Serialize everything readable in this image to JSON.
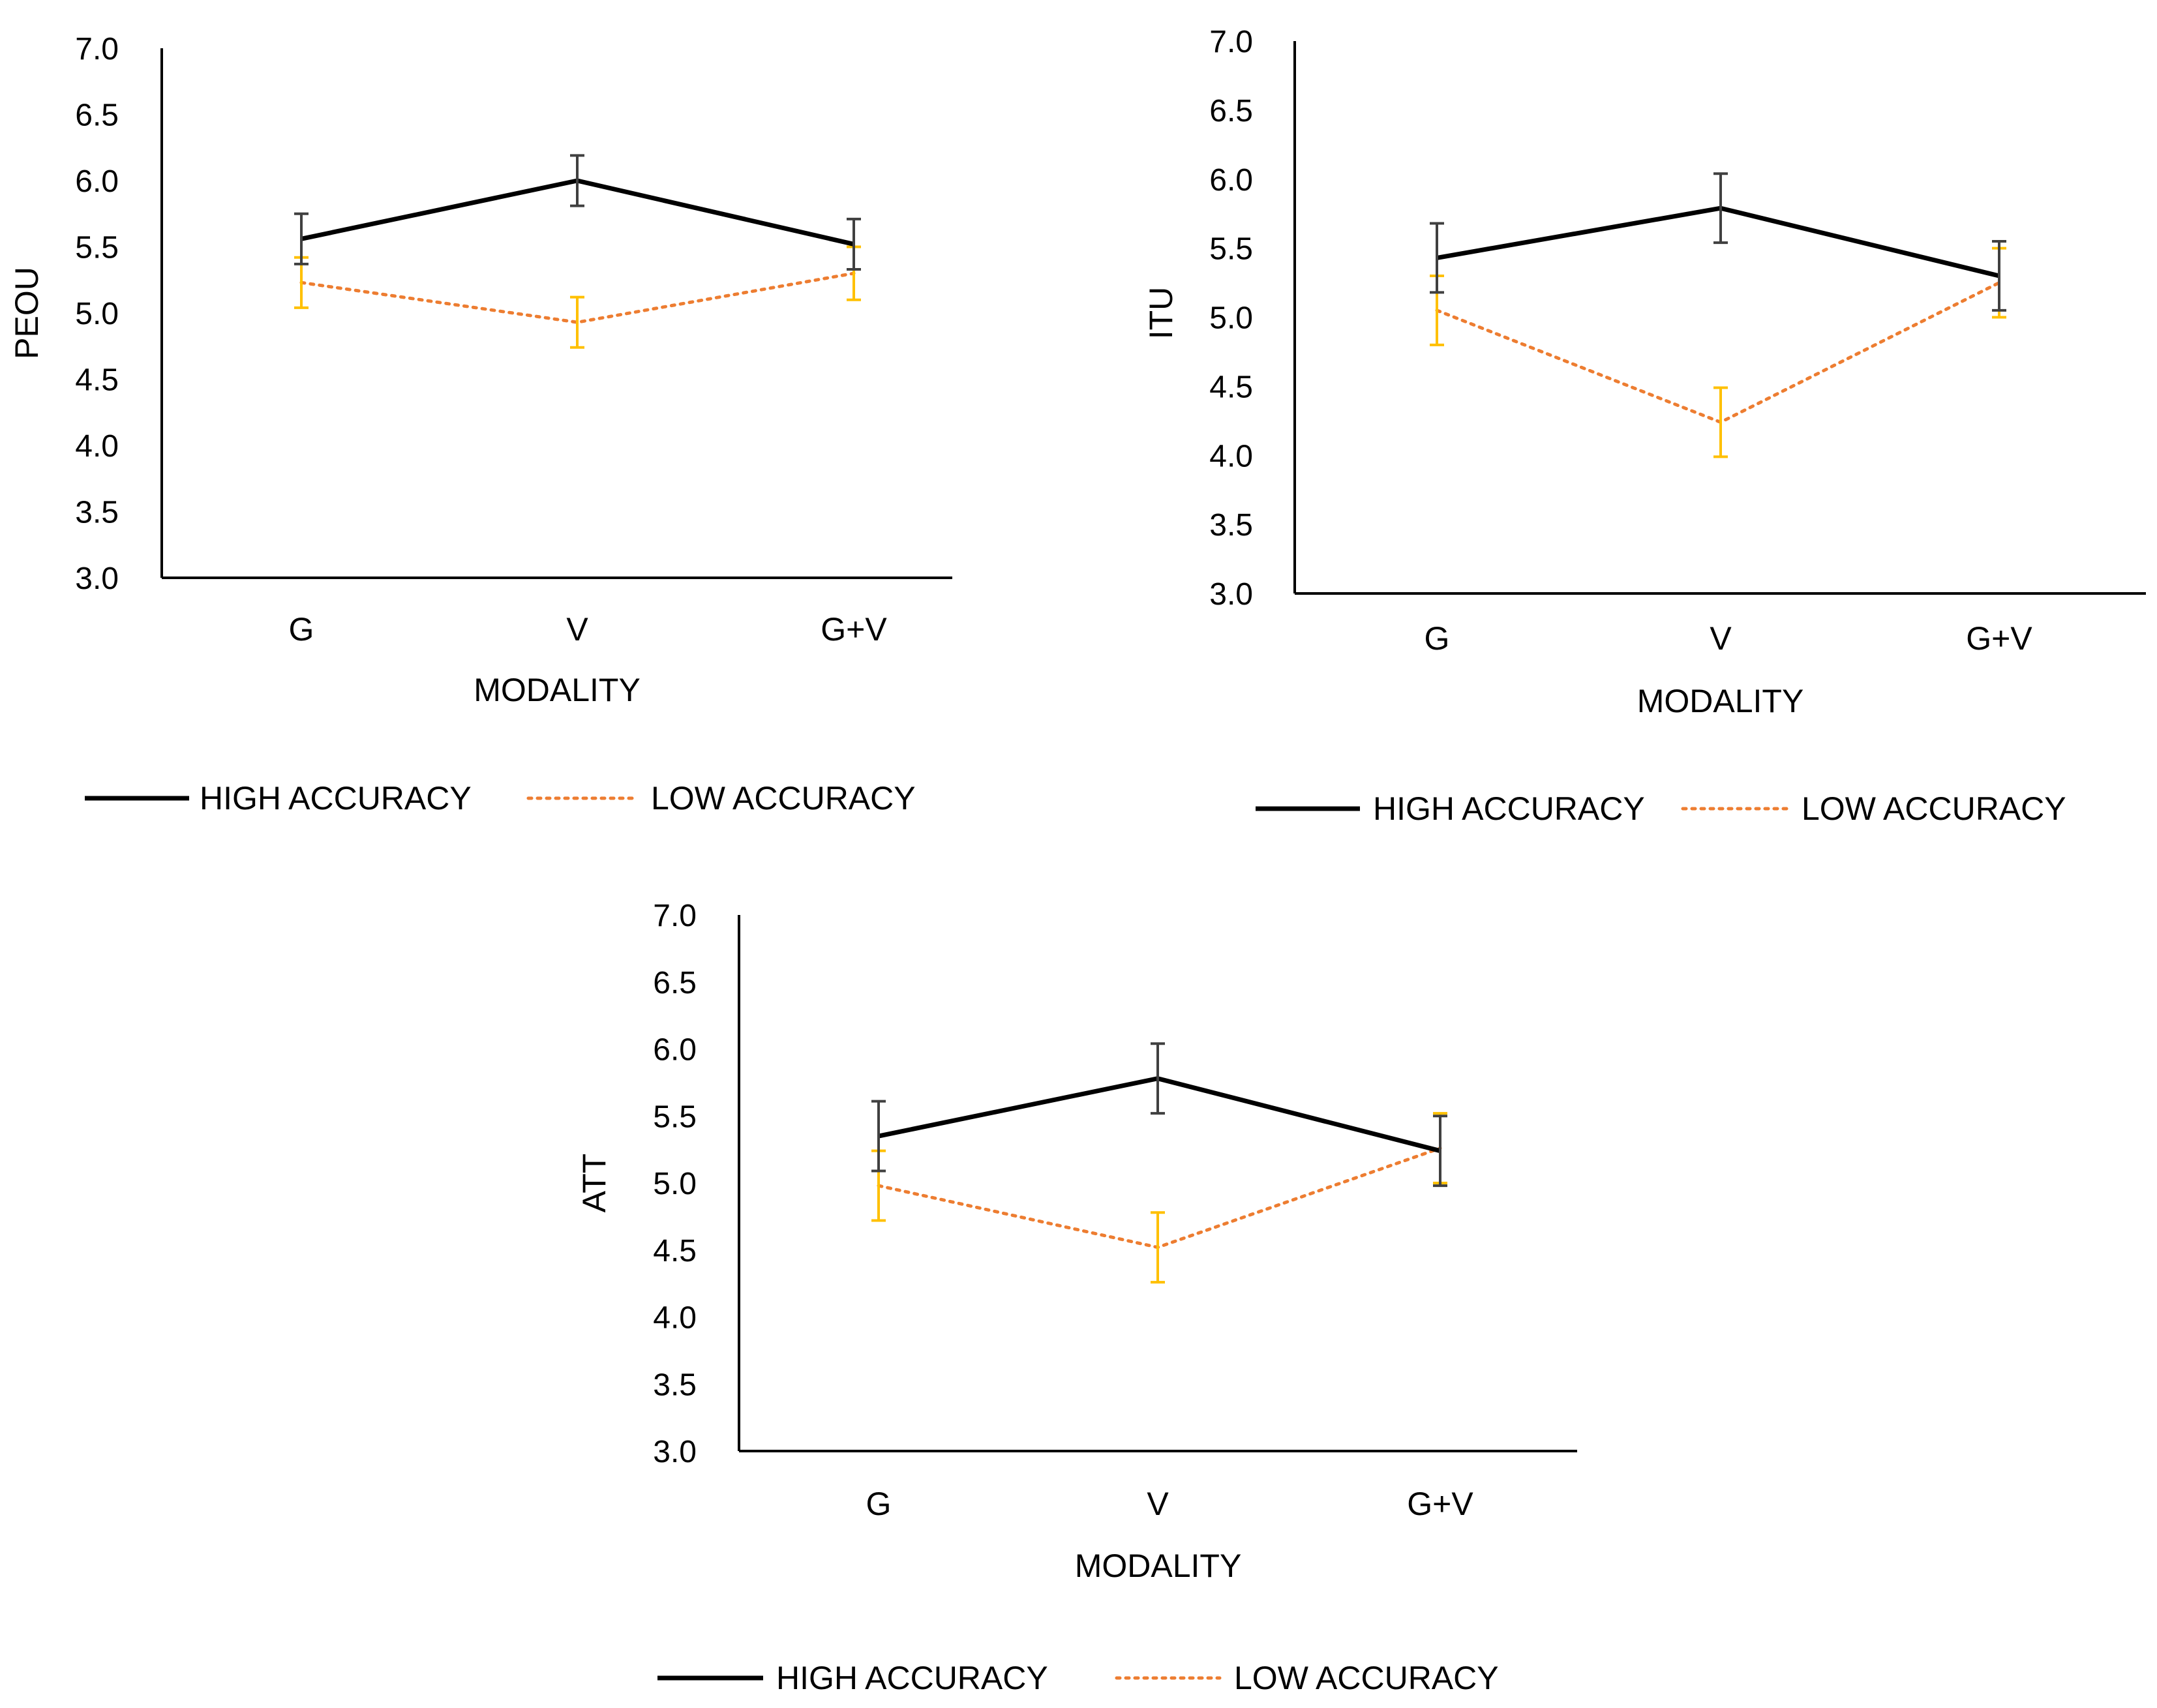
{
  "chart_data": [
    {
      "type": "line",
      "panel": "top-left",
      "title": "",
      "xlabel": "MODALITY",
      "ylabel": "PEOU",
      "categories": [
        "G",
        "V",
        "G+V"
      ],
      "ylim": [
        3.0,
        7.0
      ],
      "yticks": [
        "3.0",
        "3.5",
        "4.0",
        "4.5",
        "5.0",
        "5.5",
        "6.0",
        "6.5",
        "7.0"
      ],
      "legend_position": "bottom",
      "series": [
        {
          "name": "HIGH ACCURACY",
          "line_style": "solid",
          "color": "#000000",
          "error_color": "#404040",
          "values": [
            5.56,
            6.0,
            5.52
          ],
          "errors": [
            0.19,
            0.19,
            0.19
          ]
        },
        {
          "name": "LOW ACCURACY",
          "line_style": "dotted",
          "color": "#ED7D31",
          "error_color": "#FFC000",
          "values": [
            5.23,
            4.93,
            5.3
          ],
          "errors": [
            0.19,
            0.19,
            0.2
          ]
        }
      ]
    },
    {
      "type": "line",
      "panel": "top-right",
      "title": "",
      "xlabel": "MODALITY",
      "ylabel": "ITU",
      "categories": [
        "G",
        "V",
        "G+V"
      ],
      "ylim": [
        3.0,
        7.0
      ],
      "yticks": [
        "3.0",
        "3.5",
        "4.0",
        "4.5",
        "5.0",
        "5.5",
        "6.0",
        "6.5",
        "7.0"
      ],
      "legend_position": "bottom",
      "series": [
        {
          "name": "HIGH ACCURACY",
          "line_style": "solid",
          "color": "#000000",
          "error_color": "#404040",
          "values": [
            5.43,
            5.79,
            5.3
          ],
          "errors": [
            0.25,
            0.25,
            0.25
          ]
        },
        {
          "name": "LOW ACCURACY",
          "line_style": "dotted",
          "color": "#ED7D31",
          "error_color": "#FFC000",
          "values": [
            5.05,
            4.24,
            5.25
          ],
          "errors": [
            0.25,
            0.25,
            0.25
          ]
        }
      ]
    },
    {
      "type": "line",
      "panel": "bottom-center",
      "title": "",
      "xlabel": "MODALITY",
      "ylabel": "ATT",
      "categories": [
        "G",
        "V",
        "G+V"
      ],
      "ylim": [
        3.0,
        7.0
      ],
      "yticks": [
        "3.0",
        "3.5",
        "4.0",
        "4.5",
        "5.0",
        "5.5",
        "6.0",
        "6.5",
        "7.0"
      ],
      "legend_position": "bottom",
      "series": [
        {
          "name": "HIGH ACCURACY",
          "line_style": "solid",
          "color": "#000000",
          "error_color": "#404040",
          "values": [
            5.35,
            5.78,
            5.24
          ],
          "errors": [
            0.26,
            0.26,
            0.26
          ]
        },
        {
          "name": "LOW ACCURACY",
          "line_style": "dotted",
          "color": "#ED7D31",
          "error_color": "#FFC000",
          "values": [
            4.98,
            4.52,
            5.26
          ],
          "errors": [
            0.26,
            0.26,
            0.26
          ]
        }
      ]
    }
  ]
}
